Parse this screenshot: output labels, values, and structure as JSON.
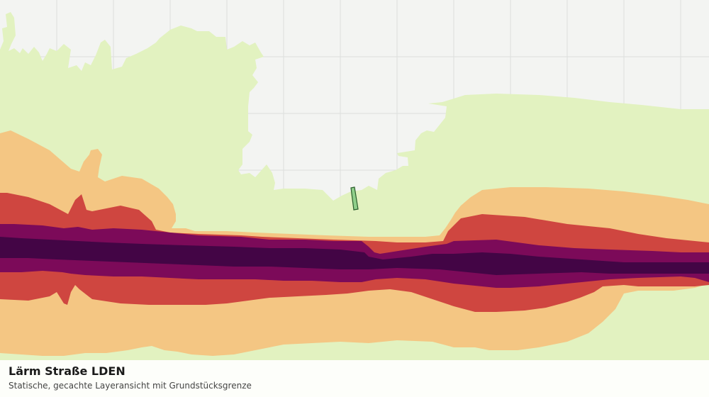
{
  "map": {
    "title": "Lärm Straße LDEN",
    "subtitle": "Statische, gecachte Layeransicht mit Grundstücksgrenze",
    "colors": {
      "background": "#f3f4f2",
      "gridline": "#dcdedc",
      "land_lowest_band": "#e2f2c0",
      "band_1": "#f4c683",
      "band_2": "#cf4640",
      "band_3": "#7c0a59",
      "band_4": "#430545",
      "parcel_fill": "#8fcf8a",
      "parcel_outline": "#2c5e2c"
    }
  }
}
